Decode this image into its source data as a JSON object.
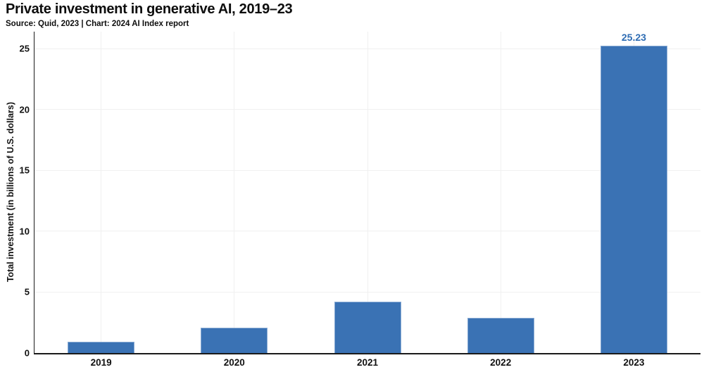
{
  "header": {
    "title": "Private investment in generative AI, 2019–23",
    "source": "Source: Quid, 2023 | Chart: 2024 AI Index report"
  },
  "chart_data": {
    "type": "bar",
    "title": "Private investment in generative AI, 2019–23",
    "source": "Source: Quid, 2023 | Chart: 2024 AI Index report",
    "categories": [
      "2019",
      "2020",
      "2021",
      "2022",
      "2023"
    ],
    "values": [
      0.9,
      2.1,
      4.2,
      2.9,
      25.23
    ],
    "data_labels": [
      "",
      "",
      "",
      "",
      "25.23"
    ],
    "xlabel": "",
    "ylabel": "Total investment (in billions of U.S. dollars)",
    "yticks": [
      0,
      5,
      10,
      15,
      20,
      25
    ],
    "ylim": [
      0,
      26.4
    ],
    "grid": "faint horizontal lines at y ticks and vertical lines at category centers",
    "legend": "none",
    "colors": {
      "bar": "#3a72b4",
      "bar_border": "#88aad3",
      "value_label": "#2d6cb3",
      "grid": "#f0f0f0",
      "axis": "#1a1a1a",
      "text": "#111111",
      "background": "#ffffff"
    }
  }
}
